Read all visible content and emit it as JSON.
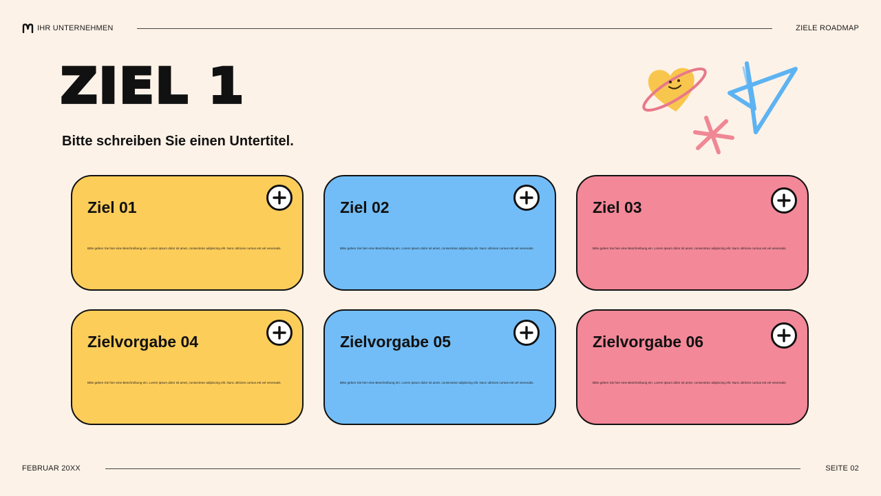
{
  "header": {
    "brand": "IHR UNTERNEHMEN",
    "doc_label": "ZIELE ROADMAP"
  },
  "title": "ZIEL 1",
  "subtitle": "Bitte schreiben Sie einen Untertitel.",
  "cards": [
    {
      "title": "Ziel 01",
      "description": "Bitte geben Sie hier eine Beschreibung ein. Lorem ipsum dolor sit amet, consectetur adipiscing elit. Nunc ultricies cursus est vel venenatis.",
      "color": "#fdcd5a"
    },
    {
      "title": "Ziel 02",
      "description": "Bitte geben Sie hier eine Beschreibung ein. Lorem ipsum dolor sit amet, consectetur adipiscing elit. Nunc ultricies cursus est vel venenatis.",
      "color": "#72bdf7"
    },
    {
      "title": "Ziel 03",
      "description": "Bitte geben Sie hier eine Beschreibung ein. Lorem ipsum dolor sit amet, consectetur adipiscing elit. Nunc ultricies cursus est vel venenatis.",
      "color": "#f38898"
    },
    {
      "title": "Zielvorgabe 04",
      "description": "Bitte geben Sie hier eine Beschreibung ein. Lorem ipsum dolor sit amet, consectetur adipiscing elit. Nunc ultricies cursus est vel venenatis.",
      "color": "#fdcd5a"
    },
    {
      "title": "Zielvorgabe 05",
      "description": "Bitte geben Sie hier eine Beschreibung ein. Lorem ipsum dolor sit amet, consectetur adipiscing elit. Nunc ultricies cursus est vel venenatis.",
      "color": "#72bdf7"
    },
    {
      "title": "Zielvorgabe 06",
      "description": "Bitte geben Sie hier eine Beschreibung ein. Lorem ipsum dolor sit amet, consectetur adipiscing elit. Nunc ultricies cursus est vel venenatis.",
      "color": "#f38898"
    }
  ],
  "footer": {
    "date": "FEBRUAR 20XX",
    "page": "SEITE 02"
  },
  "colors": {
    "background": "#fdf2e8",
    "yellow": "#fdcd5a",
    "blue": "#72bdf7",
    "pink": "#f38898"
  },
  "icons": {
    "brand": "brand-logo-icon",
    "add": "plus-circle-icon",
    "decorations": [
      "heart-planet-icon",
      "asterisk-doodle-icon",
      "star-doodle-icon"
    ]
  }
}
